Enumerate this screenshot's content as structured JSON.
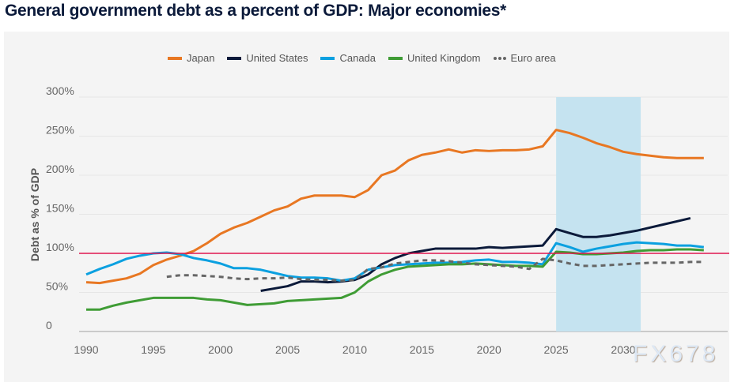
{
  "title": "General government debt as a percent of GDP: Major economies*",
  "watermark": "FX678",
  "chart_data": {
    "type": "line",
    "title": "General government debt as a percent of GDP: Major economies*",
    "xlabel": "",
    "ylabel": "Debt as % of GDP",
    "xlim": [
      1990,
      2036
    ],
    "ylim": [
      0,
      300
    ],
    "x_ticks": [
      "1990",
      "1995",
      "2000",
      "2005",
      "2010",
      "2015",
      "2020",
      "2025",
      "2030"
    ],
    "y_ticks": [
      "0",
      "50%",
      "100%",
      "150%",
      "200%",
      "250%",
      "300%"
    ],
    "grid": true,
    "legend_position": "top-center",
    "reference_line": {
      "value": 100,
      "color": "#e0174f"
    },
    "shaded_region": {
      "from": 2025,
      "to": 2031.3,
      "color": "#c5e3f0"
    },
    "series": [
      {
        "name": "Japan",
        "color": "#e87722",
        "dashed": false,
        "start": 1990,
        "values": [
          63,
          62,
          65,
          68,
          74,
          85,
          92,
          97,
          103,
          113,
          125,
          133,
          139,
          147,
          155,
          160,
          170,
          174,
          174,
          174,
          172,
          181,
          200,
          206,
          219,
          226,
          229,
          233,
          229,
          232,
          231,
          232,
          232,
          233,
          237,
          258,
          254,
          248,
          241,
          236,
          230,
          227,
          225,
          223,
          222,
          222,
          222
        ]
      },
      {
        "name": "United States",
        "color": "#0b1a3a",
        "dashed": false,
        "start": 2003,
        "values": [
          52,
          55,
          58,
          64,
          64,
          63,
          64,
          66,
          73,
          86,
          94,
          100,
          103,
          106,
          106,
          106,
          106,
          108,
          107,
          108,
          109,
          110,
          131,
          126,
          121,
          121,
          123,
          126,
          129,
          133,
          137,
          141,
          145
        ]
      },
      {
        "name": "Canada",
        "color": "#0ba0e0",
        "dashed": false,
        "start": 1990,
        "values": [
          73,
          80,
          86,
          93,
          97,
          100,
          101,
          99,
          94,
          91,
          87,
          81,
          81,
          79,
          75,
          71,
          69,
          69,
          68,
          65,
          68,
          79,
          82,
          85,
          86,
          87,
          88,
          88,
          89,
          91,
          92,
          89,
          89,
          88,
          86,
          113,
          108,
          102,
          106,
          109,
          112,
          114,
          113,
          112,
          110,
          110,
          108
        ]
      },
      {
        "name": "United Kingdom",
        "color": "#3f9c35",
        "dashed": false,
        "start": 1990,
        "values": [
          28,
          28,
          33,
          37,
          40,
          43,
          43,
          43,
          43,
          41,
          40,
          37,
          34,
          35,
          36,
          39,
          40,
          41,
          42,
          43,
          50,
          64,
          73,
          79,
          83,
          84,
          85,
          86,
          86,
          87,
          86,
          85,
          84,
          84,
          83,
          102,
          101,
          99,
          99,
          100,
          101,
          103,
          104,
          104,
          105,
          105,
          104
        ]
      },
      {
        "name": "Euro area",
        "color": "#666666",
        "dashed": true,
        "start": 1996,
        "values": [
          70,
          72,
          72,
          71,
          70,
          68,
          67,
          68,
          68,
          69,
          67,
          66,
          66,
          65,
          66,
          80,
          82,
          87,
          89,
          91,
          91,
          90,
          88,
          86,
          85,
          84,
          83,
          80,
          93,
          91,
          87,
          84,
          84,
          85,
          86,
          87,
          88,
          88,
          88,
          89,
          89
        ]
      }
    ]
  }
}
